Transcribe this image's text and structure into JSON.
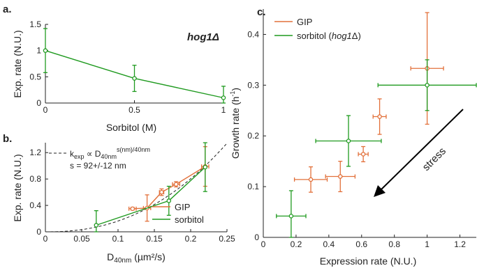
{
  "colors": {
    "gip": "#e2703a",
    "sorbitol": "#1f9a1f",
    "axis": "#222222",
    "arrow": "#000000"
  },
  "chart_data": [
    {
      "panel": "a.",
      "type": "line",
      "title": "",
      "annotation": "hog1Δ",
      "xlabel": "Sorbitol (M)",
      "ylabel": "Exp. rate (N.U.)",
      "xlim": [
        0,
        1
      ],
      "ylim": [
        0,
        1.5
      ],
      "xticks": [
        0,
        0.5,
        1
      ],
      "yticks": [
        0,
        0.5,
        1,
        1.5
      ],
      "series": [
        {
          "color_key": "sorbitol",
          "x": [
            0,
            0.5,
            1
          ],
          "y": [
            1.0,
            0.47,
            0.1
          ],
          "yerr": [
            0.42,
            0.25,
            0.22
          ]
        }
      ]
    },
    {
      "panel": "b.",
      "type": "line",
      "title": "",
      "xlabel": "D40nm (µm²/s)",
      "ylabel": "Exp. rate (N.U.)",
      "xlim": [
        0,
        0.25
      ],
      "ylim": [
        0,
        1.35
      ],
      "xticks": [
        0,
        0.05,
        0.1,
        0.15,
        0.2,
        0.25
      ],
      "yticks": [
        0,
        0.4,
        0.8,
        1.2
      ],
      "fit_legend": "k_exp ∝ D_40nm^(s(nm)/40nm)",
      "fit_text": "s = 92+/-12 nm",
      "fit_curve": {
        "style": "dashed",
        "exponent": 2.3,
        "norm_x": 0.22
      },
      "series": [
        {
          "name": "GIP",
          "color_key": "gip",
          "x": [
            0.12,
            0.14,
            0.16,
            0.18,
            0.22
          ],
          "y": [
            0.35,
            0.36,
            0.6,
            0.72,
            0.99
          ],
          "xerr": [
            0.005,
            0.005,
            0.003,
            0.005,
            0.005
          ],
          "yerr": [
            0.02,
            0.2,
            0.05,
            0.04,
            0.3
          ]
        },
        {
          "name": "sorbitol",
          "color_key": "sorbitol",
          "x": [
            0.07,
            0.17,
            0.22
          ],
          "y": [
            0.1,
            0.47,
            0.98
          ],
          "yerr": [
            0.22,
            0.22,
            0.37
          ]
        }
      ]
    },
    {
      "panel": "c.",
      "type": "scatter",
      "title": "",
      "xlabel": "Expression rate (N.U.)",
      "ylabel": "Growth rate (h⁻¹)",
      "xlim": [
        0,
        1.3
      ],
      "ylim": [
        0,
        0.45
      ],
      "xticks": [
        0,
        0.2,
        0.4,
        0.6,
        0.8,
        1,
        1.2
      ],
      "yticks": [
        0,
        0.1,
        0.2,
        0.3,
        0.4
      ],
      "arrow_label": "stress",
      "series": [
        {
          "name": "GIP",
          "color_key": "gip",
          "x": [
            0.29,
            0.47,
            0.61,
            0.71,
            1.0
          ],
          "y": [
            0.114,
            0.12,
            0.164,
            0.238,
            0.333
          ],
          "xerr": [
            0.1,
            0.09,
            0.03,
            0.04,
            0.1
          ],
          "yerr": [
            0.025,
            0.03,
            0.015,
            0.035,
            0.11
          ]
        },
        {
          "name": "sorbitol (hog1Δ)",
          "color_key": "sorbitol",
          "x": [
            0.17,
            0.52,
            1.0
          ],
          "y": [
            0.042,
            0.19,
            0.3
          ],
          "xerr": [
            0.09,
            0.2,
            0.3
          ],
          "yerr": [
            0.05,
            0.05,
            0.05
          ]
        }
      ]
    }
  ]
}
